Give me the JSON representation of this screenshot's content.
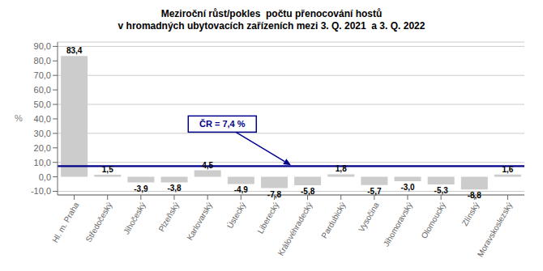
{
  "chart_data": {
    "type": "bar",
    "title": "Meziroční růst/pokles  počtu přenocování hostů",
    "subtitle": "v hromadných ubytovacích zařízeních mezi 3. Q. 2021  a 3. Q. 2022",
    "ylabel": "%",
    "categories": [
      "Hl. m. Praha",
      "Středočeský",
      "Jihočeský",
      "Plzeňský",
      "Karlovarský",
      "Ústecký",
      "Liberecký",
      "Královéhradecký",
      "Pardubický",
      "Vysočina",
      "Jihomoravský",
      "Olomoucký",
      "Zlínský",
      "Moravskoslezský"
    ],
    "values": [
      83.4,
      1.5,
      -3.9,
      -3.8,
      4.5,
      -4.9,
      -7.8,
      -5.8,
      1.8,
      -5.7,
      -3.0,
      -5.3,
      -8.8,
      1.6
    ],
    "value_labels": [
      "83,4",
      "1,5",
      "-3,9",
      "-3,8",
      "4,5",
      "-4,9",
      "-7,8",
      "-5,8",
      "1,8",
      "-5,7",
      "-3,0",
      "-5,3",
      "-8,8",
      "1,6"
    ],
    "data_labels": true,
    "color": "#cccccc",
    "ylim": [
      -12.5,
      93
    ],
    "yticks": [
      {
        "value": -10,
        "label": "-10,0"
      },
      {
        "value": 0,
        "label": "0,0"
      },
      {
        "value": 10,
        "label": "10,0"
      },
      {
        "value": 20,
        "label": "20,0"
      },
      {
        "value": 30,
        "label": "30,0"
      },
      {
        "value": 40,
        "label": "40,0"
      },
      {
        "value": 50,
        "label": "50,0"
      },
      {
        "value": 60,
        "label": "60,0"
      },
      {
        "value": 70,
        "label": "70,0"
      },
      {
        "value": 80,
        "label": "80,0"
      },
      {
        "value": 90,
        "label": "90,0"
      }
    ],
    "grid": true,
    "reference_line": {
      "value": 7.4,
      "label": "ČR = 7,4 %",
      "color": "#00008B"
    }
  }
}
